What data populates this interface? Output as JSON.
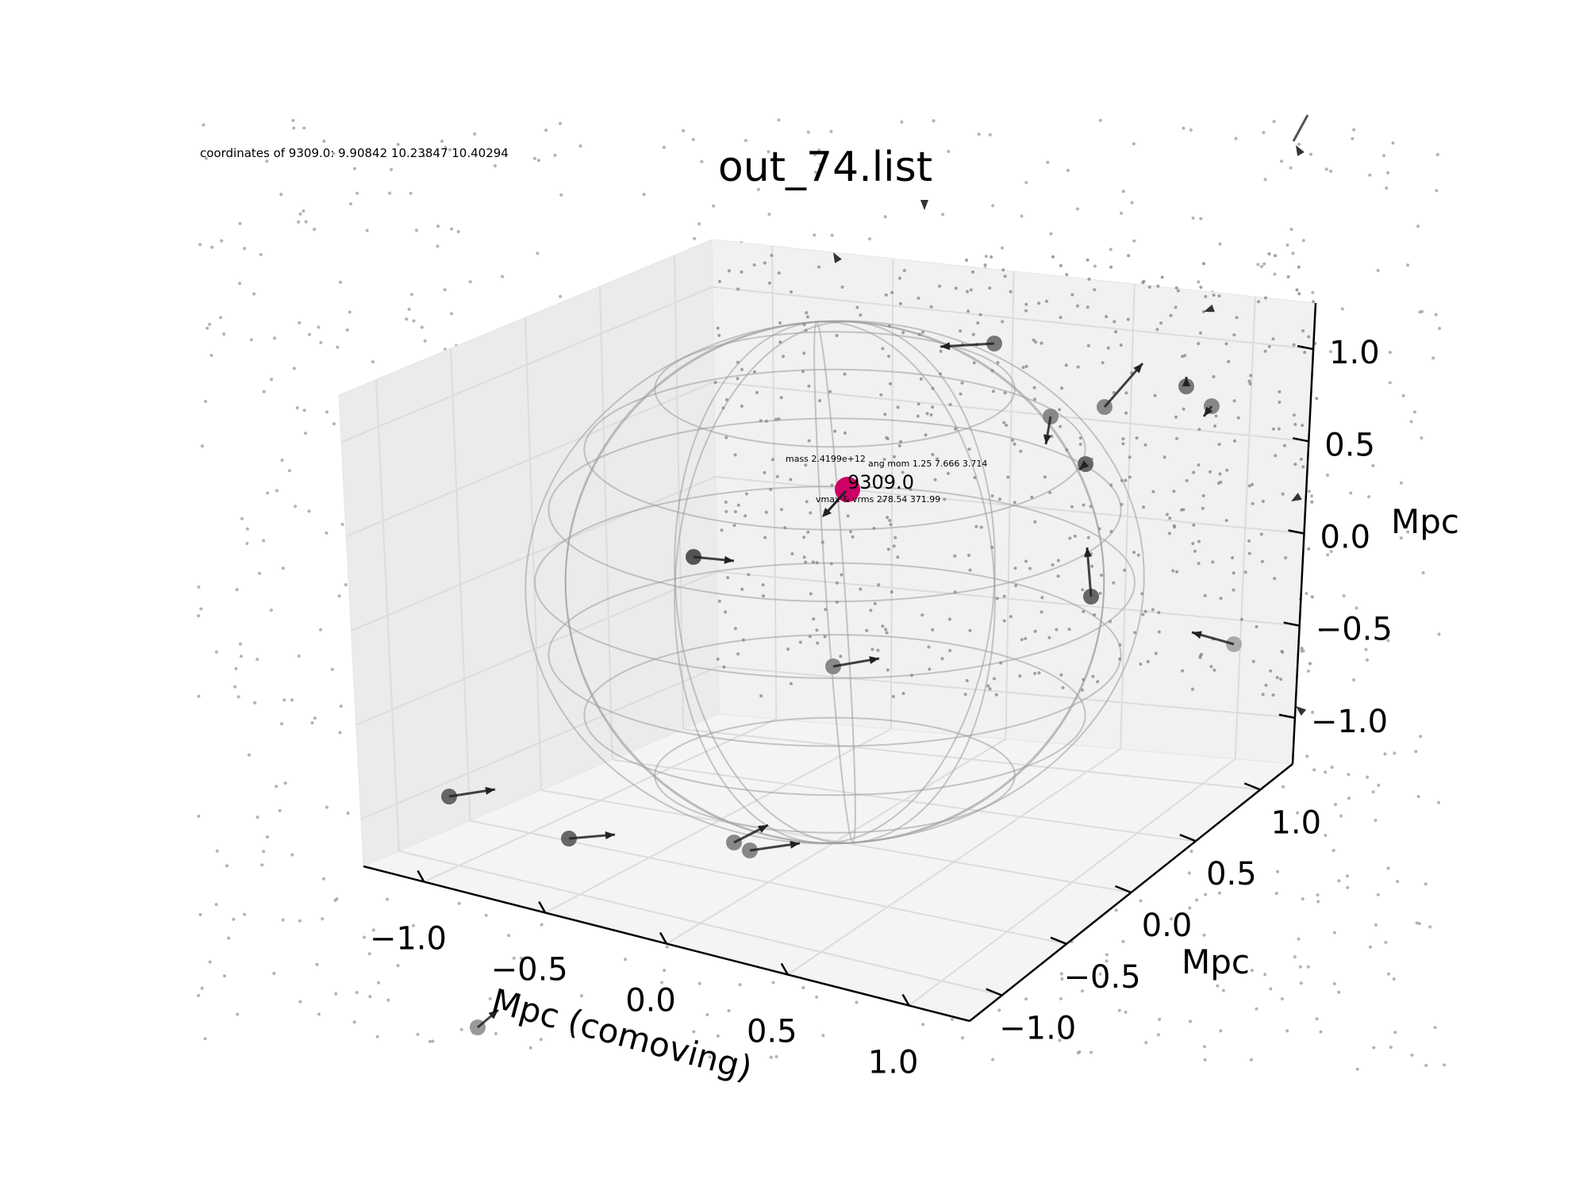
{
  "info_line": "coordinates of 9309.0: 9.90842 10.23847 10.40294",
  "chart_data": {
    "type": "scatter",
    "title": "out_74.list",
    "xlabel": "Mpc (comoving)",
    "ylabel": "Mpc",
    "zlabel": "Mpc",
    "x_ticks": [
      "−1.0",
      "−0.5",
      "0.0",
      "0.5",
      "1.0"
    ],
    "y_ticks": [
      "−1.0",
      "−0.5",
      "0.0",
      "0.5",
      "1.0"
    ],
    "z_ticks": [
      "−1.0",
      "−0.5",
      "0.0",
      "0.5",
      "1.0"
    ],
    "xlim": [
      -1.25,
      1.25
    ],
    "ylim": [
      -1.25,
      1.25
    ],
    "zlim": [
      -1.25,
      1.25
    ],
    "grid": true,
    "central_halo": {
      "id_label": "9309.0",
      "mass_label": "mass 2.4199e+12",
      "angmom_label": "ang mom 1.25 7.666 3.714",
      "vmax_label": "vmax & vrms 278.54 371.99",
      "color": "#cc0066"
    },
    "wireframe_sphere": {
      "radius": 1.0,
      "color": "#9a9a9a"
    },
    "colors": {
      "halo": "#555555",
      "particles": "#9a9a9a",
      "arrows": "#222222",
      "pane": "#f0f0f0"
    }
  }
}
